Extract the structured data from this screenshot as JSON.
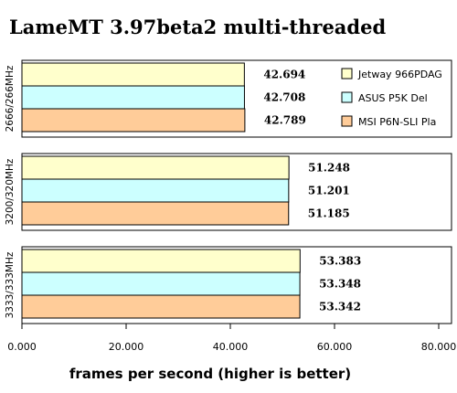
{
  "chart_data": {
    "type": "bar",
    "orientation": "horizontal",
    "title": "LameMT 3.97beta2 multi-threaded",
    "xlabel": "frames per second (higher is better)",
    "ylabel": "",
    "xlim": [
      0,
      80
    ],
    "x_ticks": [
      0,
      20,
      40,
      60,
      80
    ],
    "x_tick_labels": [
      "0.000",
      "20.000",
      "40.000",
      "60.000",
      "80.000"
    ],
    "grid": false,
    "legend_position": "right",
    "categories": [
      "2666/266MHz",
      "3200/320MHz",
      "3333/333MHz"
    ],
    "series": [
      {
        "name": "Jetway 966PDAG",
        "color": "#ffffcc",
        "values": [
          42.694,
          51.248,
          53.383
        ],
        "labels": [
          "42.694",
          "51.248",
          "53.383"
        ]
      },
      {
        "name": "ASUS P5K Del",
        "color": "#ccffff",
        "values": [
          42.708,
          51.201,
          53.348
        ],
        "labels": [
          "42.708",
          "51.201",
          "53.348"
        ]
      },
      {
        "name": "MSI P6N-SLI Pla",
        "color": "#ffcc99",
        "values": [
          42.789,
          51.185,
          53.342
        ],
        "labels": [
          "42.789",
          "51.185",
          "53.342"
        ]
      }
    ]
  }
}
